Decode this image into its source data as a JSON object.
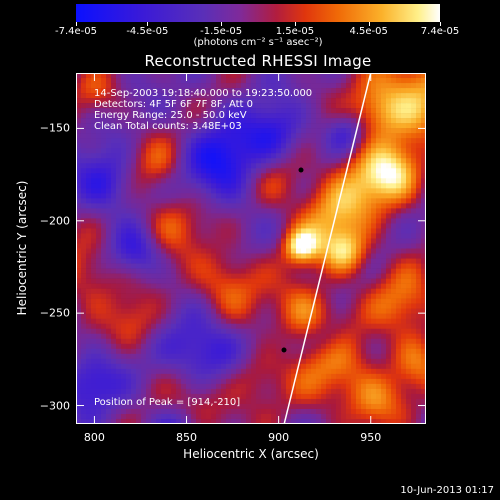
{
  "colorbar": {
    "tick_labels": [
      "-7.4e-05",
      "-4.5e-05",
      "-1.5e-05",
      "1.5e-05",
      "4.5e-05",
      "7.4e-05"
    ],
    "units_text": "(photons cm",
    "units_full": "(photons cm⁻² s⁻¹ asec⁻²)",
    "range": [
      -7.4e-05,
      7.4e-05
    ]
  },
  "chart_data": {
    "type": "heatmap",
    "title": "Reconstructed RHESSI Image",
    "xlabel": "Heliocentric X (arcsec)",
    "ylabel": "Heliocentric Y (arcsec)",
    "xlim": [
      790,
      980
    ],
    "ylim": [
      -310,
      -120
    ],
    "x_ticks": [
      "800",
      "850",
      "900",
      "950"
    ],
    "y_ticks": [
      "-150",
      "-200",
      "-250",
      "-300"
    ],
    "x_tick_values": [
      800,
      850,
      900,
      950
    ],
    "y_tick_values": [
      -150,
      -200,
      -250,
      -300
    ],
    "annotations": [
      "14-Sep-2003 19:18:40.000 to 19:23:50.000",
      "Detectors: 4F 5F 6F 7F 8F, Att 0",
      "Energy Range: 25.0 - 50.0 keV",
      "Clean    Total counts: 3.48E+03"
    ],
    "peak_label": "Position of Peak = [914,-210]",
    "peak": [
      914,
      -210
    ],
    "limb_line": [
      [
        903,
        -310
      ],
      [
        950,
        -120
      ]
    ]
  },
  "footer": {
    "timestamp": "10-Jun-2013 01:17"
  }
}
